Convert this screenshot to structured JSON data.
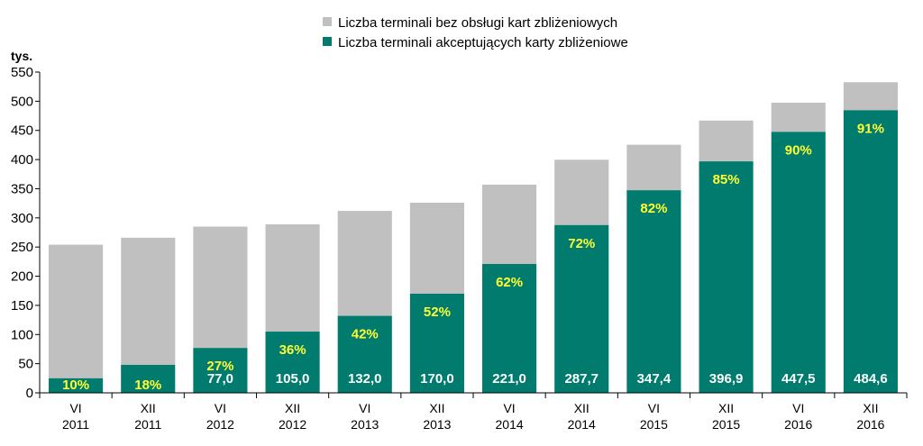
{
  "chart_data": {
    "type": "bar",
    "stacked": true,
    "ylabel": "tys.",
    "ylim": [
      0,
      550
    ],
    "yticks": [
      0,
      50,
      100,
      150,
      200,
      250,
      300,
      350,
      400,
      450,
      500,
      550
    ],
    "grid": false,
    "legend_position": "top",
    "categories": [
      {
        "line1": "VI",
        "line2": "2011"
      },
      {
        "line1": "XII",
        "line2": "2011"
      },
      {
        "line1": "VI",
        "line2": "2012"
      },
      {
        "line1": "XII",
        "line2": "2012"
      },
      {
        "line1": "VI",
        "line2": "2013"
      },
      {
        "line1": "XII",
        "line2": "2013"
      },
      {
        "line1": "VI",
        "line2": "2014"
      },
      {
        "line1": "XII",
        "line2": "2014"
      },
      {
        "line1": "VI",
        "line2": "2015"
      },
      {
        "line1": "XII",
        "line2": "2015"
      },
      {
        "line1": "VI",
        "line2": "2016"
      },
      {
        "line1": "XII",
        "line2": "2016"
      }
    ],
    "series": [
      {
        "name": "Liczba terminali akceptujących karty zbliżeniowe",
        "color": "#007b6e",
        "values": [
          25,
          48,
          77.0,
          105.0,
          132.0,
          170.0,
          221.0,
          287.7,
          347.4,
          396.9,
          447.5,
          484.6
        ],
        "value_labels": [
          "",
          "",
          "77,0",
          "105,0",
          "132,0",
          "170,0",
          "221,0",
          "287,7",
          "347,4",
          "396,9",
          "447,5",
          "484,6"
        ],
        "percent_labels": [
          "10%",
          "18%",
          "27%",
          "36%",
          "42%",
          "52%",
          "62%",
          "72%",
          "82%",
          "85%",
          "90%",
          "91%"
        ]
      },
      {
        "name": "Liczba terminali bez obsługi kart zbliżeniowych",
        "color": "#c0c0c0",
        "values": [
          229,
          218,
          208,
          184,
          180,
          156,
          136,
          112,
          78,
          70,
          50,
          48
        ]
      }
    ],
    "legend": [
      {
        "label": "Liczba terminali bez obsługi kart zbliżeniowych",
        "color": "#c0c0c0"
      },
      {
        "label": "Liczba terminali akceptujących karty zbliżeniowe",
        "color": "#007b6e"
      }
    ]
  }
}
